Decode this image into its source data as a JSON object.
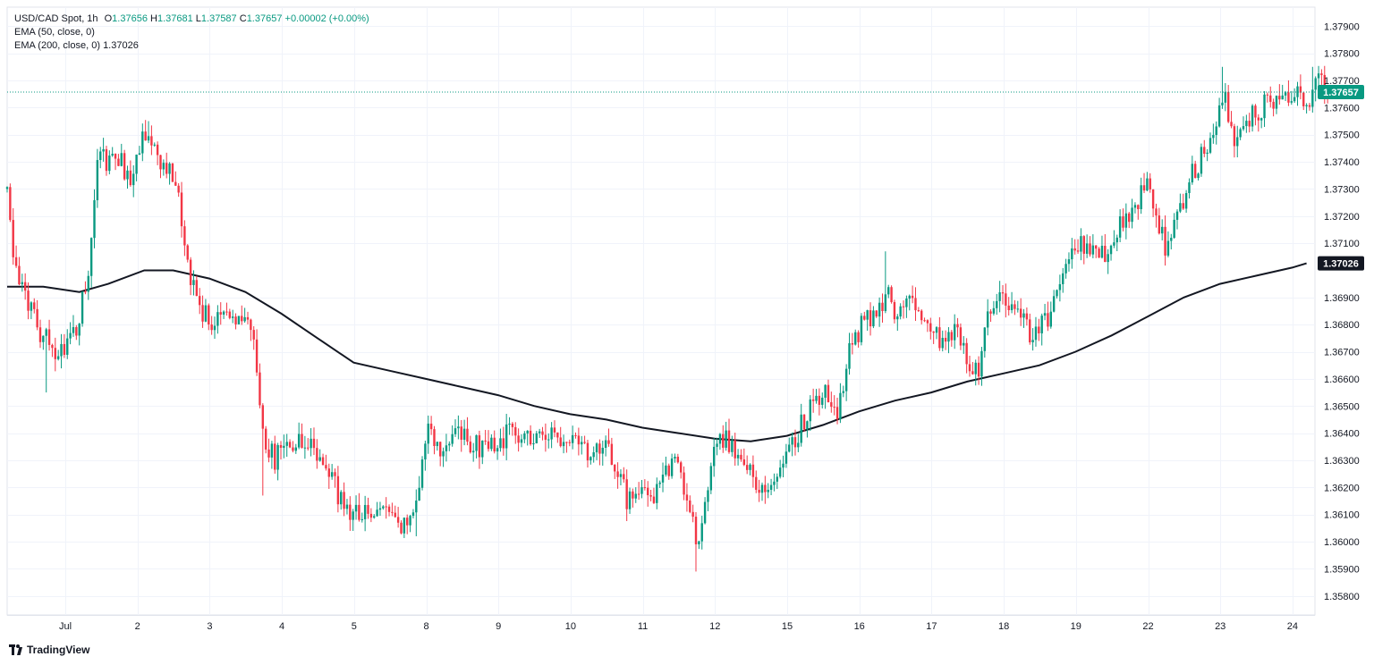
{
  "legend": {
    "symbol": "USD/CAD Spot, 1h",
    "ohlc": {
      "o_label": "O",
      "o": "1.37656",
      "h_label": "H",
      "h": "1.37681",
      "l_label": "L",
      "l": "1.37587",
      "c_label": "C",
      "c": "1.37657",
      "change": "+0.00002 (+0.00%)"
    },
    "ema50": "EMA (50, close, 0)",
    "ema200_label": "EMA (200, close, 0)",
    "ema200_value": "1.37026"
  },
  "branding": "TradingView",
  "colors": {
    "up": "#089981",
    "down": "#F23645",
    "ema": "#131722",
    "grid": "#F0F3FA",
    "axis_text": "#131722",
    "price_badge": "#089981",
    "ema_badge": "#131722"
  },
  "chart_data": {
    "type": "candlestick",
    "ylim": [
      1.3573,
      1.3797
    ],
    "yticks": [
      "1.37900",
      "1.37800",
      "1.37700",
      "1.37600",
      "1.37500",
      "1.37400",
      "1.37300",
      "1.37200",
      "1.37100",
      "1.36900",
      "1.36800",
      "1.36700",
      "1.36600",
      "1.36500",
      "1.36400",
      "1.36300",
      "1.36200",
      "1.36100",
      "1.36000",
      "1.35900",
      "1.35800"
    ],
    "ytick_values": [
      1.379,
      1.378,
      1.377,
      1.376,
      1.375,
      1.374,
      1.373,
      1.372,
      1.371,
      1.369,
      1.368,
      1.367,
      1.366,
      1.365,
      1.364,
      1.363,
      1.362,
      1.361,
      1.36,
      1.359,
      1.358
    ],
    "xticks": [
      {
        "label": "Jul",
        "day": 1
      },
      {
        "label": "2",
        "day": 2
      },
      {
        "label": "3",
        "day": 3
      },
      {
        "label": "4",
        "day": 4
      },
      {
        "label": "5",
        "day": 5
      },
      {
        "label": "8",
        "day": 6
      },
      {
        "label": "9",
        "day": 7
      },
      {
        "label": "10",
        "day": 8
      },
      {
        "label": "11",
        "day": 9
      },
      {
        "label": "12",
        "day": 10
      },
      {
        "label": "15",
        "day": 11
      },
      {
        "label": "16",
        "day": 12
      },
      {
        "label": "17",
        "day": 13
      },
      {
        "label": "18",
        "day": 14
      },
      {
        "label": "19",
        "day": 15
      },
      {
        "label": "22",
        "day": 16
      },
      {
        "label": "23",
        "day": 17
      },
      {
        "label": "24",
        "day": 18
      }
    ],
    "last_price": 1.37657,
    "last_price_label": "1.37657",
    "ema200_last": 1.37026,
    "ema200_label": "1.37026",
    "price_path": [
      [
        0.0,
        1.373
      ],
      [
        0.08,
        1.3705
      ],
      [
        0.2,
        1.3693
      ],
      [
        0.3,
        1.3688
      ],
      [
        0.45,
        1.3678
      ],
      [
        0.6,
        1.3672
      ],
      [
        0.8,
        1.367
      ],
      [
        0.95,
        1.3678
      ],
      [
        1.15,
        1.3705
      ],
      [
        1.25,
        1.374
      ],
      [
        1.5,
        1.3742
      ],
      [
        1.7,
        1.3735
      ],
      [
        1.95,
        1.3753
      ],
      [
        2.15,
        1.374
      ],
      [
        2.35,
        1.373
      ],
      [
        2.5,
        1.37
      ],
      [
        2.7,
        1.3685
      ],
      [
        2.85,
        1.368
      ],
      [
        3.1,
        1.3682
      ],
      [
        3.4,
        1.368
      ],
      [
        3.55,
        1.364
      ],
      [
        3.7,
        1.363
      ],
      [
        3.9,
        1.3638
      ],
      [
        4.2,
        1.3635
      ],
      [
        4.45,
        1.3625
      ],
      [
        4.7,
        1.3612
      ],
      [
        5.0,
        1.3612
      ],
      [
        5.3,
        1.3608
      ],
      [
        5.5,
        1.3606
      ],
      [
        5.65,
        1.361
      ],
      [
        5.8,
        1.364
      ],
      [
        6.0,
        1.3635
      ],
      [
        6.2,
        1.3643
      ],
      [
        6.5,
        1.3635
      ],
      [
        6.8,
        1.3638
      ],
      [
        7.1,
        1.364
      ],
      [
        7.4,
        1.364
      ],
      [
        7.7,
        1.3637
      ],
      [
        8.0,
        1.3633
      ],
      [
        8.3,
        1.3636
      ],
      [
        8.45,
        1.3625
      ],
      [
        8.6,
        1.3615
      ],
      [
        8.8,
        1.362
      ],
      [
        9.0,
        1.3618
      ],
      [
        9.25,
        1.363
      ],
      [
        9.45,
        1.3615
      ],
      [
        9.55,
        1.3598
      ],
      [
        9.7,
        1.3622
      ],
      [
        9.85,
        1.364
      ],
      [
        10.1,
        1.3632
      ],
      [
        10.3,
        1.3625
      ],
      [
        10.5,
        1.362
      ],
      [
        10.75,
        1.3632
      ],
      [
        10.95,
        1.364
      ],
      [
        11.15,
        1.365
      ],
      [
        11.35,
        1.3655
      ],
      [
        11.5,
        1.3645
      ],
      [
        11.65,
        1.3668
      ],
      [
        11.85,
        1.368
      ],
      [
        12.0,
        1.3683
      ],
      [
        12.2,
        1.369
      ],
      [
        12.35,
        1.3682
      ],
      [
        12.5,
        1.369
      ],
      [
        12.7,
        1.368
      ],
      [
        12.9,
        1.3675
      ],
      [
        13.1,
        1.3678
      ],
      [
        13.3,
        1.3668
      ],
      [
        13.45,
        1.3663
      ],
      [
        13.6,
        1.3685
      ],
      [
        13.8,
        1.369
      ],
      [
        14.0,
        1.3682
      ],
      [
        14.25,
        1.3675
      ],
      [
        14.45,
        1.3685
      ],
      [
        14.6,
        1.3695
      ],
      [
        14.8,
        1.3712
      ],
      [
        15.0,
        1.3708
      ],
      [
        15.2,
        1.3705
      ],
      [
        15.4,
        1.3715
      ],
      [
        15.6,
        1.3723
      ],
      [
        15.8,
        1.3735
      ],
      [
        15.95,
        1.3718
      ],
      [
        16.05,
        1.3708
      ],
      [
        16.25,
        1.3722
      ],
      [
        16.45,
        1.3738
      ],
      [
        16.6,
        1.3744
      ],
      [
        16.85,
        1.3765
      ],
      [
        17.0,
        1.375
      ],
      [
        17.2,
        1.3755
      ],
      [
        17.45,
        1.3762
      ],
      [
        17.65,
        1.3764
      ],
      [
        17.85,
        1.3768
      ],
      [
        18.05,
        1.3762
      ],
      [
        18.15,
        1.377
      ],
      [
        18.3,
        1.3766
      ]
    ],
    "ema200_path": [
      [
        0.0,
        1.3694
      ],
      [
        0.5,
        1.3694
      ],
      [
        1.0,
        1.3692
      ],
      [
        1.4,
        1.3695
      ],
      [
        1.9,
        1.37
      ],
      [
        2.3,
        1.37
      ],
      [
        2.8,
        1.3697
      ],
      [
        3.3,
        1.3692
      ],
      [
        3.8,
        1.3684
      ],
      [
        4.3,
        1.3675
      ],
      [
        4.8,
        1.3666
      ],
      [
        5.3,
        1.3663
      ],
      [
        5.8,
        1.366
      ],
      [
        6.3,
        1.3657
      ],
      [
        6.8,
        1.3654
      ],
      [
        7.3,
        1.365
      ],
      [
        7.8,
        1.3647
      ],
      [
        8.3,
        1.3645
      ],
      [
        8.8,
        1.3642
      ],
      [
        9.3,
        1.364
      ],
      [
        9.8,
        1.3638
      ],
      [
        10.3,
        1.3637
      ],
      [
        10.8,
        1.3639
      ],
      [
        11.3,
        1.3643
      ],
      [
        11.8,
        1.3648
      ],
      [
        12.3,
        1.3652
      ],
      [
        12.8,
        1.3655
      ],
      [
        13.3,
        1.3659
      ],
      [
        13.8,
        1.3662
      ],
      [
        14.3,
        1.3665
      ],
      [
        14.8,
        1.367
      ],
      [
        15.3,
        1.3676
      ],
      [
        15.8,
        1.3683
      ],
      [
        16.3,
        1.369
      ],
      [
        16.8,
        1.3695
      ],
      [
        17.3,
        1.3698
      ],
      [
        17.8,
        1.3701
      ],
      [
        18.0,
        1.37026
      ]
    ],
    "extremes": [
      {
        "t": 0.55,
        "low": 1.3655
      },
      {
        "t": 1.95,
        "high": 1.3755
      },
      {
        "t": 3.55,
        "low": 1.3617
      },
      {
        "t": 5.65,
        "low": 1.3602
      },
      {
        "t": 9.55,
        "low": 1.3589
      },
      {
        "t": 12.15,
        "high": 1.3707
      },
      {
        "t": 16.6,
        "high": 1.3748
      },
      {
        "t": 16.85,
        "high": 1.3775
      },
      {
        "t": 18.1,
        "high": 1.3775
      }
    ]
  }
}
